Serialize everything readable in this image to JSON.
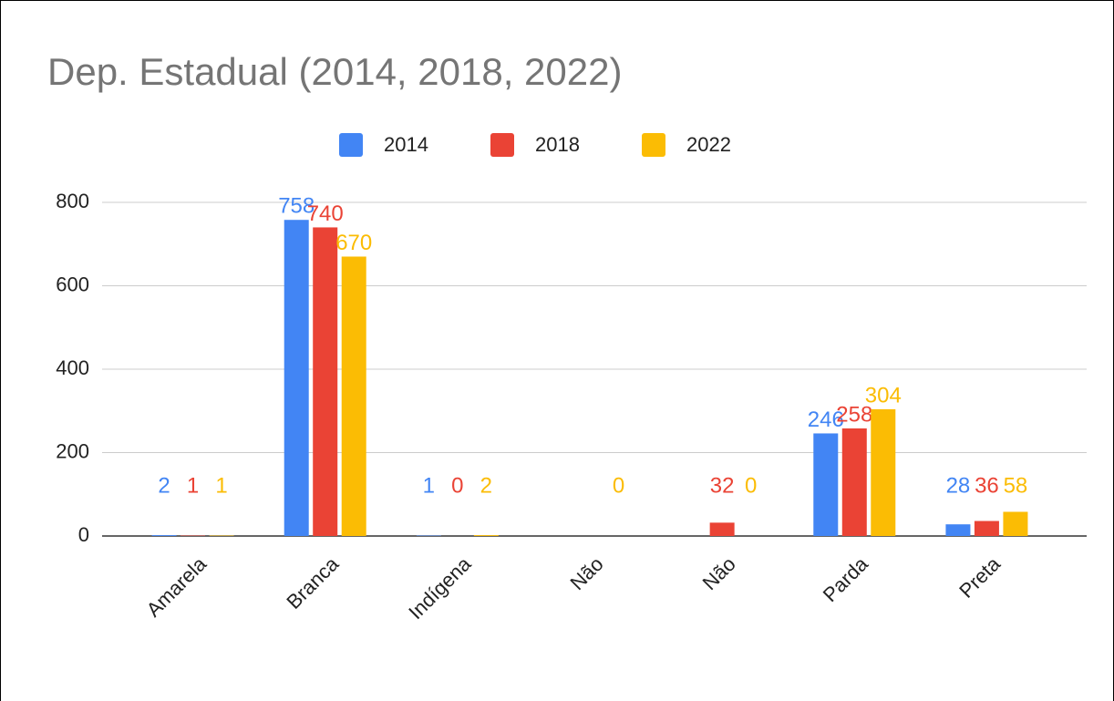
{
  "chart_data": {
    "type": "bar",
    "title": "Dep. Estadual (2014, 2018, 2022)",
    "categories": [
      "Amarela",
      "Branca",
      "Indígena",
      "Não",
      "Não",
      "Parda",
      "Preta"
    ],
    "series": [
      {
        "name": "2014",
        "color": "#4285f4",
        "values": [
          2,
          758,
          1,
          null,
          null,
          246,
          28
        ]
      },
      {
        "name": "2018",
        "color": "#ea4335",
        "values": [
          1,
          740,
          0,
          null,
          32,
          258,
          36
        ]
      },
      {
        "name": "2022",
        "color": "#fbbc04",
        "values": [
          1,
          670,
          2,
          0,
          0,
          304,
          58
        ]
      }
    ],
    "ylim": [
      0,
      800
    ],
    "yticks": [
      0,
      200,
      400,
      600,
      800
    ],
    "grid": true,
    "legend": "top"
  }
}
